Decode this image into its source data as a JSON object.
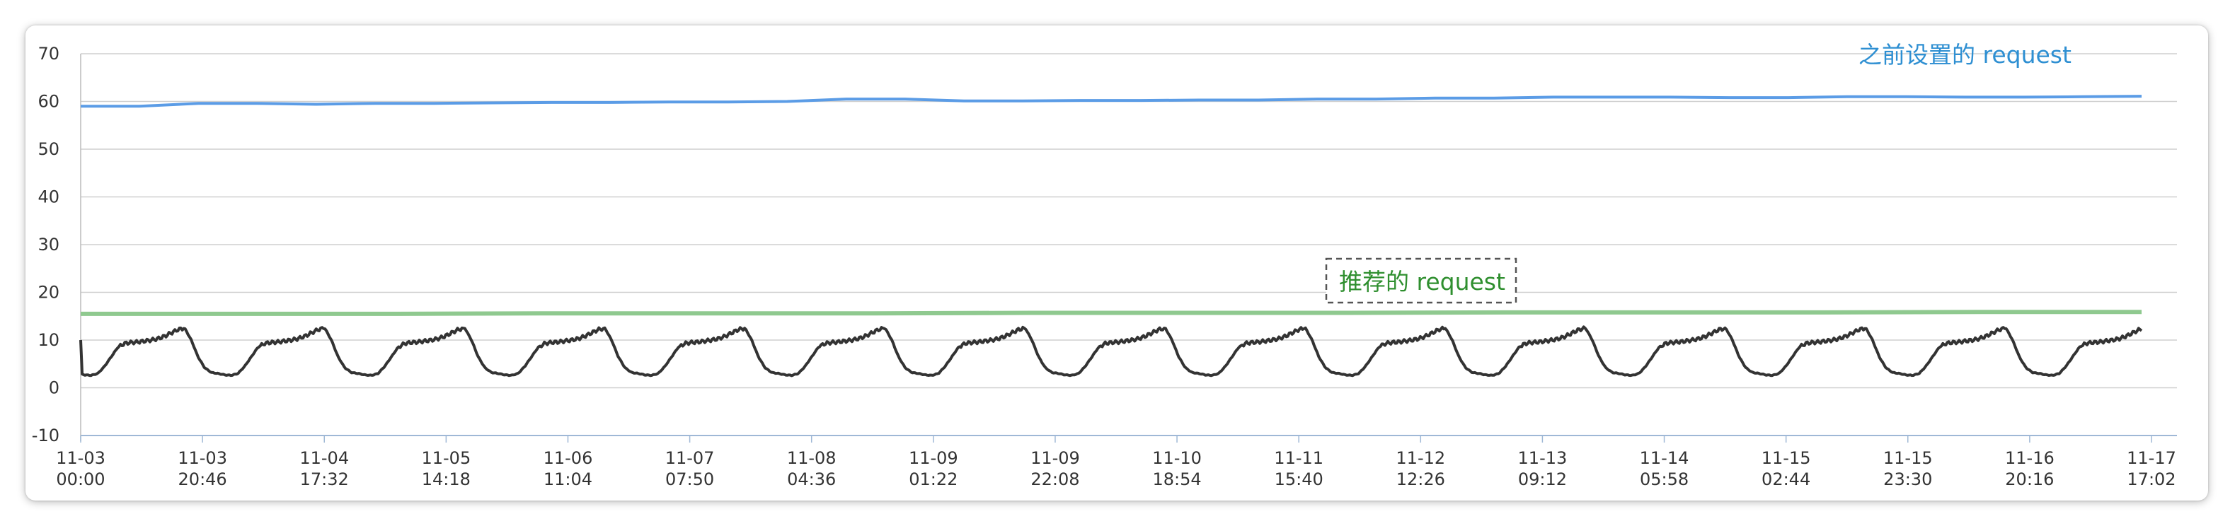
{
  "chart_data": {
    "type": "line",
    "title": "",
    "xlabel": "",
    "ylabel": "",
    "ylim": [
      -10,
      70
    ],
    "yticks": [
      -10,
      0,
      10,
      20,
      30,
      40,
      50,
      60,
      70
    ],
    "grid": true,
    "legend": "none",
    "x_ticks": [
      {
        "date": "11-03",
        "time": "00:00"
      },
      {
        "date": "11-03",
        "time": "20:46"
      },
      {
        "date": "11-04",
        "time": "17:32"
      },
      {
        "date": "11-05",
        "time": "14:18"
      },
      {
        "date": "11-06",
        "time": "11:04"
      },
      {
        "date": "11-07",
        "time": "07:50"
      },
      {
        "date": "11-08",
        "time": "04:36"
      },
      {
        "date": "11-09",
        "time": "01:22"
      },
      {
        "date": "11-09",
        "time": "22:08"
      },
      {
        "date": "11-10",
        "time": "18:54"
      },
      {
        "date": "11-11",
        "time": "15:40"
      },
      {
        "date": "11-12",
        "time": "12:26"
      },
      {
        "date": "11-13",
        "time": "09:12"
      },
      {
        "date": "11-14",
        "time": "05:58"
      },
      {
        "date": "11-15",
        "time": "02:44"
      },
      {
        "date": "11-15",
        "time": "23:30"
      },
      {
        "date": "11-16",
        "time": "20:16"
      },
      {
        "date": "11-17",
        "time": "17:02"
      }
    ],
    "x_start": "11-03 00:00",
    "x_end": "11-17 17:02",
    "series": [
      {
        "color": "#5b9ce6",
        "values": [
          59.0,
          59.0,
          59.6,
          59.6,
          59.4,
          59.6,
          59.6,
          59.7,
          59.8,
          59.8,
          59.9,
          59.9,
          60.0,
          60.5,
          60.5,
          60.1,
          60.1,
          60.2,
          60.2,
          60.3,
          60.3,
          60.5,
          60.5,
          60.7,
          60.7,
          60.9,
          60.9,
          60.9,
          60.8,
          60.8,
          61.0,
          61.0,
          60.9,
          60.9,
          61.0,
          61.1
        ]
      },
      {
        "color": "#8fc98f",
        "values": [
          15.5,
          15.5,
          15.5,
          15.6,
          15.6,
          15.6,
          15.7,
          15.7,
          15.7,
          15.8,
          15.8,
          15.8,
          15.9,
          15.9
        ]
      },
      {
        "color": "#333333",
        "period_days": 1,
        "daily_profile": [
          3,
          2.7,
          2.6,
          3,
          4.5,
          6.5,
          8.5,
          9.3,
          9.5,
          9.6,
          9.8,
          10,
          10.3,
          10.8,
          11.5,
          12.2,
          12.5,
          10,
          6.5,
          4.2,
          3.2,
          3
        ]
      }
    ],
    "annotations": [
      {
        "text": "之前设置的 request",
        "color": "#2e8fd2"
      },
      {
        "text": "推荐的 request",
        "color": "#2f8f2f",
        "boxed": true
      }
    ]
  }
}
